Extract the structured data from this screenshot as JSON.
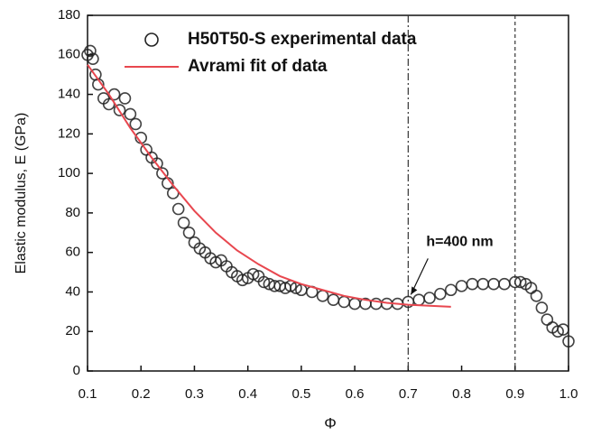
{
  "chart_data": {
    "type": "scatter",
    "xlabel": "Φ",
    "ylabel": "Elastic modulus, E (GPa)",
    "xlim": [
      0.1,
      1.0
    ],
    "ylim": [
      0,
      180
    ],
    "xticks": [
      0.1,
      0.2,
      0.3,
      0.4,
      0.5,
      0.6,
      0.7,
      0.8,
      0.9,
      {
        "value": 1,
        "label": "1.0"
      }
    ],
    "yticks": [
      0,
      20,
      40,
      60,
      80,
      100,
      120,
      140,
      160,
      180
    ],
    "legend": "upper center",
    "series": [
      {
        "name": "H50T50-S experimental data",
        "type": "scatter",
        "color": "#222222",
        "x": [
          0.1,
          0.105,
          0.11,
          0.115,
          0.12,
          0.13,
          0.14,
          0.15,
          0.16,
          0.17,
          0.18,
          0.19,
          0.2,
          0.21,
          0.22,
          0.23,
          0.24,
          0.25,
          0.26,
          0.27,
          0.28,
          0.29,
          0.3,
          0.31,
          0.32,
          0.33,
          0.34,
          0.35,
          0.36,
          0.37,
          0.38,
          0.39,
          0.4,
          0.41,
          0.42,
          0.43,
          0.44,
          0.45,
          0.46,
          0.47,
          0.48,
          0.49,
          0.5,
          0.52,
          0.54,
          0.56,
          0.58,
          0.6,
          0.62,
          0.64,
          0.66,
          0.68,
          0.7,
          0.72,
          0.74,
          0.76,
          0.78,
          0.8,
          0.82,
          0.84,
          0.86,
          0.88,
          0.9,
          0.91,
          0.92,
          0.93,
          0.94,
          0.95,
          0.96,
          0.97,
          0.98,
          0.99,
          1.0
        ],
        "values": [
          160,
          162,
          158,
          150,
          145,
          138,
          135,
          140,
          132,
          138,
          130,
          125,
          118,
          112,
          108,
          105,
          100,
          95,
          90,
          82,
          75,
          70,
          65,
          62,
          60,
          57,
          55,
          56,
          53,
          50,
          48,
          46,
          47,
          49,
          48,
          45,
          44,
          43,
          43,
          42,
          43,
          42,
          41,
          40,
          38,
          36,
          35,
          34,
          34,
          34,
          34,
          34,
          35,
          36,
          37,
          39,
          41,
          43,
          44,
          44,
          44,
          44,
          45,
          45,
          44,
          42,
          38,
          32,
          26,
          22,
          20,
          21,
          15
        ]
      },
      {
        "name": "Avrami fit of data",
        "type": "line",
        "color": "#e8474f",
        "x": [
          0.1,
          0.14,
          0.18,
          0.22,
          0.26,
          0.3,
          0.34,
          0.38,
          0.42,
          0.46,
          0.5,
          0.54,
          0.58,
          0.62,
          0.66,
          0.7,
          0.74,
          0.78
        ],
        "values": [
          155,
          140,
          123,
          108,
          94,
          81,
          70,
          61,
          54,
          48,
          44,
          41,
          38,
          36,
          34.5,
          33.5,
          33,
          32.5
        ]
      }
    ],
    "vlines": [
      {
        "x": 0.7,
        "style": "dashdot"
      },
      {
        "x": 0.9,
        "style": "dashed"
      }
    ],
    "annotations": [
      {
        "text": "h=400 nm",
        "x": 0.7,
        "y": 35
      }
    ]
  }
}
